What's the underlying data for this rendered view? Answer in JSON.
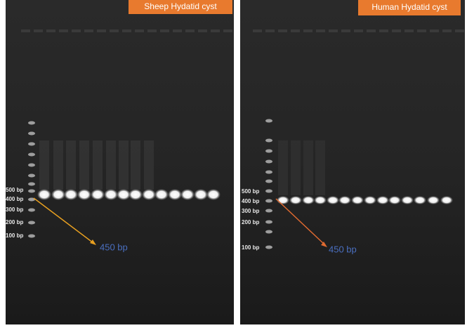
{
  "panels": [
    {
      "title": "Sheep Hydatid cyst",
      "ladder": [
        "500 bp",
        "400 bp",
        "300 bp",
        "200 bp",
        "100 bp"
      ],
      "annotation": "450 bp"
    },
    {
      "title": "Human Hydatid cyst",
      "ladder": [
        "500 bp",
        "400 bp",
        "300 bp",
        "200 bp",
        "100 bp"
      ],
      "annotation": "450 bp"
    }
  ]
}
